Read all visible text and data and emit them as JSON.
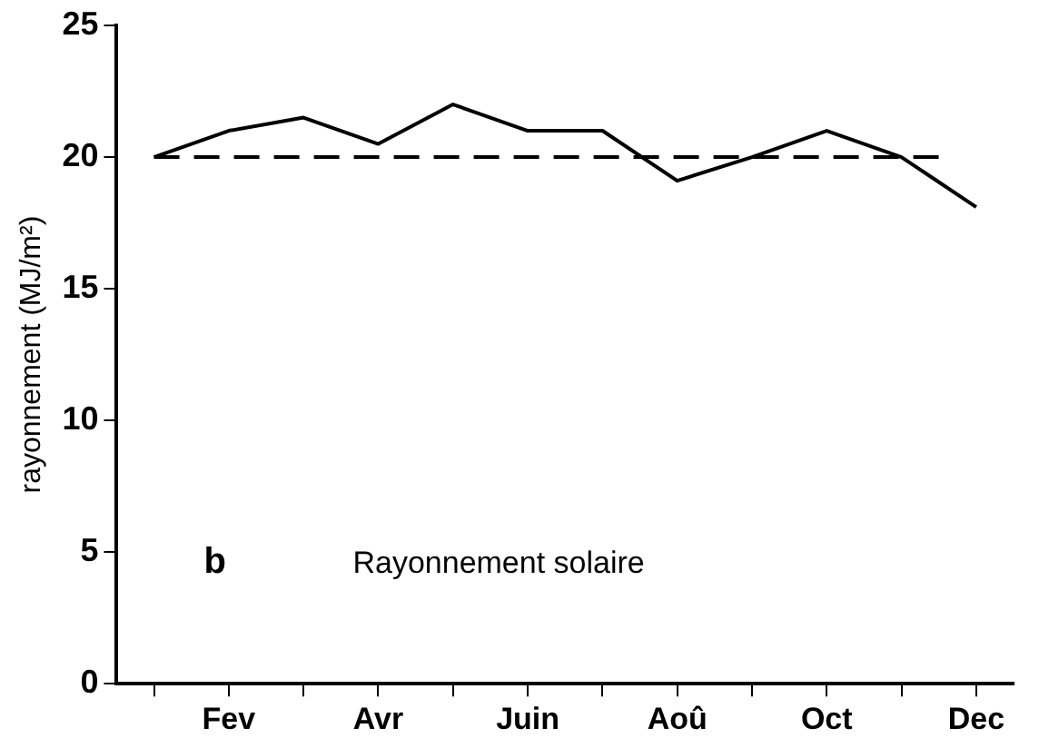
{
  "chart_data": {
    "type": "line",
    "ylabel": "rayonnement (MJ/m²)",
    "categories": [
      null,
      "Fev",
      null,
      "Avr",
      null,
      "Juin",
      null,
      "Aoû",
      null,
      "Oct",
      null,
      "Dec"
    ],
    "series": [
      {
        "color": "#000000",
        "values": [
          20.0,
          21.0,
          21.5,
          20.5,
          22.0,
          21.0,
          21.0,
          19.1,
          20.0,
          21.0,
          20.0,
          18.1
        ]
      }
    ],
    "ylim": [
      0,
      25
    ],
    "yticks": [
      0,
      5,
      10,
      15,
      20,
      25
    ],
    "grid": false,
    "legend": false,
    "marker": "none",
    "line_style": "solid",
    "ref_lines": [
      {
        "axis": "y",
        "value": 20,
        "line_style": "dashed",
        "color": "#000000"
      }
    ],
    "annotations": [
      "b",
      "Rayonnement solaire"
    ]
  }
}
